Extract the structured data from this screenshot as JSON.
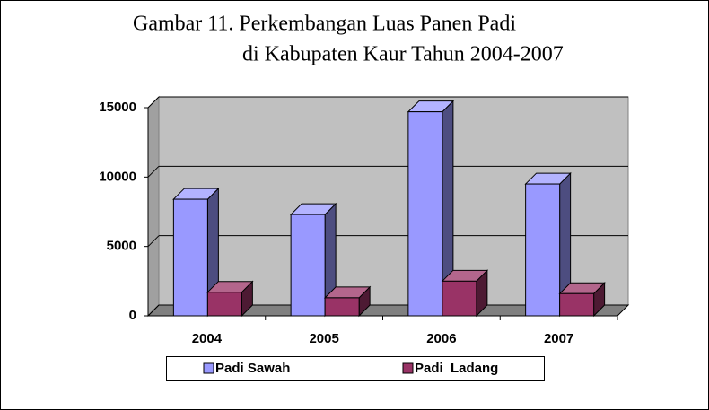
{
  "chart_data": {
    "type": "bar3d",
    "title": [
      "Gambar 11. Perkembangan Luas Panen Padi",
      "di Kabupaten Kaur Tahun 2004-2007"
    ],
    "categories": [
      "2004",
      "2005",
      "2006",
      "2007"
    ],
    "series": [
      {
        "name": "Padi Sawah",
        "color": "#9999ff",
        "values": [
          8400,
          7300,
          14700,
          9500
        ]
      },
      {
        "name": "Padi  Ladang",
        "color": "#993366",
        "values": [
          1700,
          1300,
          2500,
          1600
        ]
      }
    ],
    "ylim": [
      0,
      15000
    ],
    "yticks": [
      0,
      5000,
      10000,
      15000
    ],
    "grid": true,
    "legend": "bottom"
  }
}
